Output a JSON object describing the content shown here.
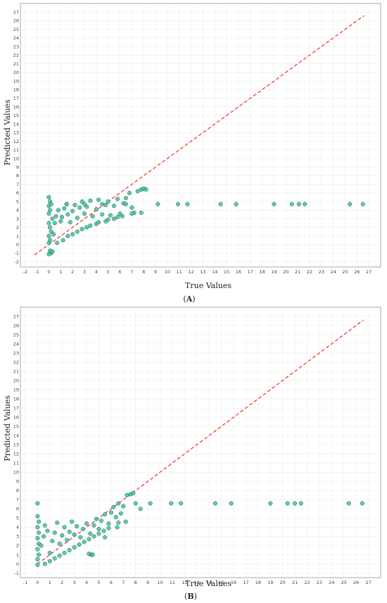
{
  "chart_data": [
    {
      "panel": "(A)",
      "panel_prefix": "(",
      "panel_letter": "A",
      "panel_suffix": ")",
      "type": "scatter",
      "title": "",
      "xlabel": "True Values",
      "ylabel": "Predicted Values",
      "xlim": [
        -2.4,
        28
      ],
      "ylim": [
        -2.6,
        28
      ],
      "xticks": [
        -2,
        -1,
        0,
        1,
        2,
        3,
        4,
        5,
        6,
        7,
        8,
        9,
        10,
        11,
        12,
        13,
        14,
        15,
        16,
        17,
        18,
        19,
        20,
        21,
        22,
        23,
        24,
        25,
        26,
        27
      ],
      "yticks": [
        -2,
        -1,
        0,
        1,
        2,
        3,
        4,
        5,
        6,
        7,
        8,
        9,
        10,
        11,
        12,
        13,
        14,
        15,
        16,
        17,
        18,
        19,
        20,
        21,
        22,
        23,
        24,
        25,
        26,
        27
      ],
      "grid": true,
      "reference_line": {
        "x": [
          -1.2,
          26.6
        ],
        "y": [
          -1.2,
          26.6
        ],
        "color": "#e8422c",
        "style": "dashed"
      },
      "marker_color": "#3ec4a0",
      "marker_edge": "#2b5b4c",
      "points": [
        [
          0.0,
          -1.1
        ],
        [
          0.2,
          -1.0
        ],
        [
          0.1,
          -0.7
        ],
        [
          0.3,
          -0.8
        ],
        [
          0.0,
          0.2
        ],
        [
          0.1,
          0.5
        ],
        [
          0.0,
          1.0
        ],
        [
          0.2,
          1.5
        ],
        [
          0.1,
          2.0
        ],
        [
          0.0,
          2.5
        ],
        [
          0.3,
          3.0
        ],
        [
          0.0,
          3.6
        ],
        [
          0.1,
          4.0
        ],
        [
          0.0,
          4.5
        ],
        [
          0.1,
          5.0
        ],
        [
          0.0,
          5.5
        ],
        [
          0.4,
          1.2
        ],
        [
          0.5,
          2.5
        ],
        [
          0.6,
          3.3
        ],
        [
          0.8,
          4.0
        ],
        [
          1.0,
          2.7
        ],
        [
          1.1,
          3.2
        ],
        [
          1.3,
          4.2
        ],
        [
          1.5,
          4.7
        ],
        [
          1.6,
          3.5
        ],
        [
          1.8,
          2.6
        ],
        [
          2.0,
          3.9
        ],
        [
          2.2,
          4.6
        ],
        [
          2.4,
          3.1
        ],
        [
          2.6,
          4.3
        ],
        [
          2.8,
          5.0
        ],
        [
          3.0,
          3.6
        ],
        [
          3.2,
          4.4
        ],
        [
          3.5,
          5.1
        ],
        [
          3.7,
          3.3
        ],
        [
          4.0,
          4.1
        ],
        [
          4.2,
          5.2
        ],
        [
          4.5,
          3.5
        ],
        [
          4.8,
          4.6
        ],
        [
          5.0,
          5.0
        ],
        [
          5.2,
          3.4
        ],
        [
          5.5,
          4.5
        ],
        [
          5.8,
          5.3
        ],
        [
          6.0,
          3.6
        ],
        [
          6.3,
          4.8
        ],
        [
          6.5,
          5.4
        ],
        [
          6.8,
          6.0
        ],
        [
          7.0,
          4.3
        ],
        [
          7.2,
          3.7
        ],
        [
          7.5,
          6.2
        ],
        [
          7.8,
          6.4
        ],
        [
          8.0,
          6.5
        ],
        [
          8.2,
          6.4
        ],
        [
          0.2,
          4.7
        ],
        [
          1.5,
          4.7
        ],
        [
          3.0,
          4.7
        ],
        [
          4.5,
          4.7
        ],
        [
          6.5,
          4.7
        ],
        [
          9.2,
          4.7
        ],
        [
          10.9,
          4.7
        ],
        [
          11.7,
          4.7
        ],
        [
          14.5,
          4.7
        ],
        [
          15.8,
          4.7
        ],
        [
          19.0,
          4.7
        ],
        [
          20.5,
          4.7
        ],
        [
          21.1,
          4.7
        ],
        [
          21.6,
          4.7
        ],
        [
          25.4,
          4.7
        ],
        [
          26.5,
          4.7
        ],
        [
          1.2,
          0.5
        ],
        [
          2.0,
          1.2
        ],
        [
          2.8,
          1.8
        ],
        [
          3.5,
          2.2
        ],
        [
          4.2,
          2.6
        ],
        [
          5.0,
          2.9
        ],
        [
          5.8,
          3.2
        ],
        [
          0.7,
          0.2
        ],
        [
          1.6,
          1.0
        ],
        [
          2.4,
          1.5
        ],
        [
          3.2,
          2.0
        ],
        [
          4.0,
          2.4
        ],
        [
          4.8,
          2.7
        ],
        [
          5.5,
          3.0
        ],
        [
          6.2,
          3.3
        ],
        [
          7.0,
          3.6
        ],
        [
          7.8,
          3.7
        ]
      ]
    },
    {
      "panel": "(B)",
      "panel_prefix": "(",
      "panel_letter": "B",
      "panel_suffix": ")",
      "type": "scatter",
      "title": "",
      "xlabel": "True Values",
      "ylabel": "Predicted Values",
      "xlim": [
        -1.4,
        28
      ],
      "ylim": [
        -1.5,
        28
      ],
      "xticks": [
        -1,
        0,
        1,
        2,
        3,
        4,
        5,
        6,
        7,
        8,
        9,
        10,
        11,
        12,
        13,
        14,
        15,
        16,
        17,
        18,
        19,
        20,
        21,
        22,
        23,
        24,
        25,
        26,
        27
      ],
      "yticks": [
        -1,
        0,
        1,
        2,
        3,
        4,
        5,
        6,
        7,
        8,
        9,
        10,
        11,
        12,
        13,
        14,
        15,
        16,
        17,
        18,
        19,
        20,
        21,
        22,
        23,
        24,
        25,
        26,
        27
      ],
      "grid": true,
      "reference_line": {
        "x": [
          0,
          26.6
        ],
        "y": [
          0,
          26.6
        ],
        "color": "#e8422c",
        "style": "dashed"
      },
      "marker_color": "#3ec4a0",
      "marker_edge": "#2b5b4c",
      "points": [
        [
          0.0,
          -0.1
        ],
        [
          0.0,
          0.5
        ],
        [
          0.1,
          1.0
        ],
        [
          0.0,
          1.6
        ],
        [
          0.1,
          2.2
        ],
        [
          0.0,
          2.8
        ],
        [
          0.1,
          3.4
        ],
        [
          0.0,
          4.0
        ],
        [
          0.1,
          4.6
        ],
        [
          0.0,
          5.2
        ],
        [
          0.0,
          6.6
        ],
        [
          0.3,
          2.0
        ],
        [
          0.5,
          3.0
        ],
        [
          0.6,
          4.2
        ],
        [
          0.8,
          3.6
        ],
        [
          1.0,
          1.2
        ],
        [
          1.2,
          2.5
        ],
        [
          1.4,
          3.4
        ],
        [
          1.6,
          4.5
        ],
        [
          1.8,
          2.2
        ],
        [
          2.0,
          3.1
        ],
        [
          2.2,
          4.0
        ],
        [
          2.4,
          2.6
        ],
        [
          2.6,
          3.5
        ],
        [
          2.8,
          4.6
        ],
        [
          3.0,
          3.2
        ],
        [
          3.2,
          4.1
        ],
        [
          3.5,
          2.9
        ],
        [
          3.7,
          3.8
        ],
        [
          4.0,
          4.4
        ],
        [
          4.2,
          1.1
        ],
        [
          4.4,
          1.0
        ],
        [
          4.5,
          1.0
        ],
        [
          4.3,
          3.3
        ],
        [
          4.6,
          4.2
        ],
        [
          4.8,
          4.9
        ],
        [
          5.0,
          3.8
        ],
        [
          5.2,
          4.7
        ],
        [
          5.5,
          5.4
        ],
        [
          5.8,
          4.4
        ],
        [
          6.0,
          5.6
        ],
        [
          6.2,
          6.2
        ],
        [
          6.4,
          5.1
        ],
        [
          6.6,
          6.6
        ],
        [
          6.8,
          5.5
        ],
        [
          7.0,
          6.3
        ],
        [
          7.3,
          7.5
        ],
        [
          7.6,
          7.6
        ],
        [
          7.8,
          7.7
        ],
        [
          8.0,
          6.6
        ],
        [
          8.4,
          6.0
        ],
        [
          7.2,
          4.6
        ],
        [
          6.5,
          4.0
        ],
        [
          5.5,
          2.9
        ],
        [
          9.2,
          6.6
        ],
        [
          10.9,
          6.6
        ],
        [
          11.7,
          6.6
        ],
        [
          14.5,
          6.6
        ],
        [
          15.8,
          6.6
        ],
        [
          19.0,
          6.6
        ],
        [
          20.4,
          6.6
        ],
        [
          21.0,
          6.6
        ],
        [
          21.5,
          6.6
        ],
        [
          25.4,
          6.6
        ],
        [
          26.5,
          6.6
        ],
        [
          1.0,
          0.3
        ],
        [
          1.8,
          0.9
        ],
        [
          2.6,
          1.5
        ],
        [
          3.4,
          2.1
        ],
        [
          4.2,
          2.7
        ],
        [
          5.0,
          3.3
        ],
        [
          5.8,
          3.9
        ],
        [
          6.6,
          4.5
        ],
        [
          0.6,
          0.0
        ],
        [
          1.4,
          0.6
        ],
        [
          2.2,
          1.2
        ],
        [
          3.0,
          1.8
        ],
        [
          3.8,
          2.4
        ],
        [
          4.6,
          3.0
        ],
        [
          5.4,
          3.6
        ]
      ]
    }
  ]
}
